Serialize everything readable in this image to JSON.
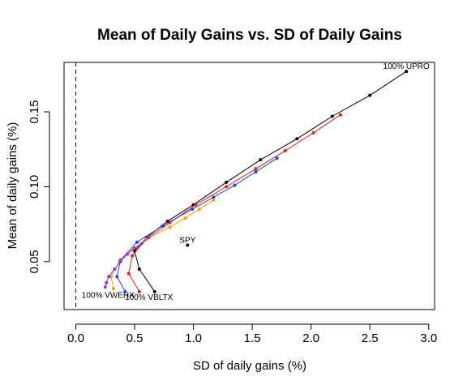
{
  "chart_data": {
    "type": "line",
    "title": "Mean of Daily Gains vs. SD of Daily Gains",
    "xlabel": "SD of daily gains (%)",
    "ylabel": "Mean of daily gains (%)",
    "xlim": [
      -0.1,
      3.05
    ],
    "ylim": [
      0.018,
      0.183
    ],
    "xticks": [
      0.0,
      0.5,
      1.0,
      1.5,
      2.0,
      2.5,
      3.0
    ],
    "xtick_labels": [
      "0.0",
      "0.5",
      "1.0",
      "1.5",
      "2.0",
      "2.5",
      "3.0"
    ],
    "yticks": [
      0.05,
      0.1,
      0.15
    ],
    "ytick_labels": [
      "0.05",
      "0.10",
      "0.15"
    ],
    "grid": false,
    "legend": "none",
    "reference_line": {
      "x": 0,
      "style": "dashed"
    },
    "series": [
      {
        "color": "#000000",
        "points": [
          [
            0.67,
            0.03
          ],
          [
            0.54,
            0.045
          ],
          [
            0.5,
            0.057
          ],
          [
            0.6,
            0.066
          ],
          [
            0.78,
            0.077
          ],
          [
            1.0,
            0.088
          ],
          [
            1.28,
            0.103
          ],
          [
            1.57,
            0.118
          ],
          [
            1.88,
            0.132
          ],
          [
            2.18,
            0.147
          ],
          [
            2.5,
            0.161
          ],
          [
            2.81,
            0.177
          ]
        ]
      },
      {
        "color": "#e8200c",
        "points": [
          [
            0.54,
            0.03
          ],
          [
            0.45,
            0.042
          ],
          [
            0.48,
            0.054
          ],
          [
            0.6,
            0.065
          ],
          [
            0.8,
            0.076
          ],
          [
            1.02,
            0.088
          ],
          [
            1.28,
            0.1
          ],
          [
            1.53,
            0.112
          ],
          [
            1.78,
            0.124
          ],
          [
            2.02,
            0.136
          ],
          [
            2.25,
            0.148
          ]
        ]
      },
      {
        "color": "#1f3fe8",
        "points": [
          [
            0.42,
            0.03
          ],
          [
            0.35,
            0.04
          ],
          [
            0.38,
            0.051
          ],
          [
            0.52,
            0.063
          ],
          [
            0.74,
            0.074
          ],
          [
            0.99,
            0.085
          ],
          [
            1.17,
            0.093
          ],
          [
            1.35,
            0.101
          ],
          [
            1.53,
            0.11
          ],
          [
            1.71,
            0.119
          ]
        ]
      },
      {
        "color": "#f5a00a",
        "points": [
          [
            0.32,
            0.032
          ],
          [
            0.3,
            0.04
          ],
          [
            0.37,
            0.05
          ],
          [
            0.48,
            0.058
          ],
          [
            0.6,
            0.065
          ],
          [
            0.8,
            0.073
          ],
          [
            0.93,
            0.079
          ],
          [
            1.05,
            0.085
          ],
          [
            1.17,
            0.091
          ]
        ]
      },
      {
        "color": "#9b30e0",
        "points": [
          [
            0.25,
            0.033
          ],
          [
            0.26,
            0.036
          ],
          [
            0.28,
            0.04
          ],
          [
            0.33,
            0.045
          ],
          [
            0.38,
            0.05
          ],
          [
            0.44,
            0.055
          ],
          [
            0.5,
            0.059
          ],
          [
            0.56,
            0.062
          ],
          [
            0.62,
            0.066
          ]
        ]
      }
    ],
    "points": [
      {
        "label": "SPY",
        "x": 0.95,
        "y": 0.061,
        "color": "#000000"
      }
    ],
    "annotations": [
      {
        "text": "100% UPRO",
        "x": 2.81,
        "y": 0.177
      },
      {
        "text": "100% VWEHX",
        "x": 0.25,
        "y": 0.033
      },
      {
        "text": "100% VBLTX",
        "x": 0.67,
        "y": 0.03
      }
    ]
  }
}
